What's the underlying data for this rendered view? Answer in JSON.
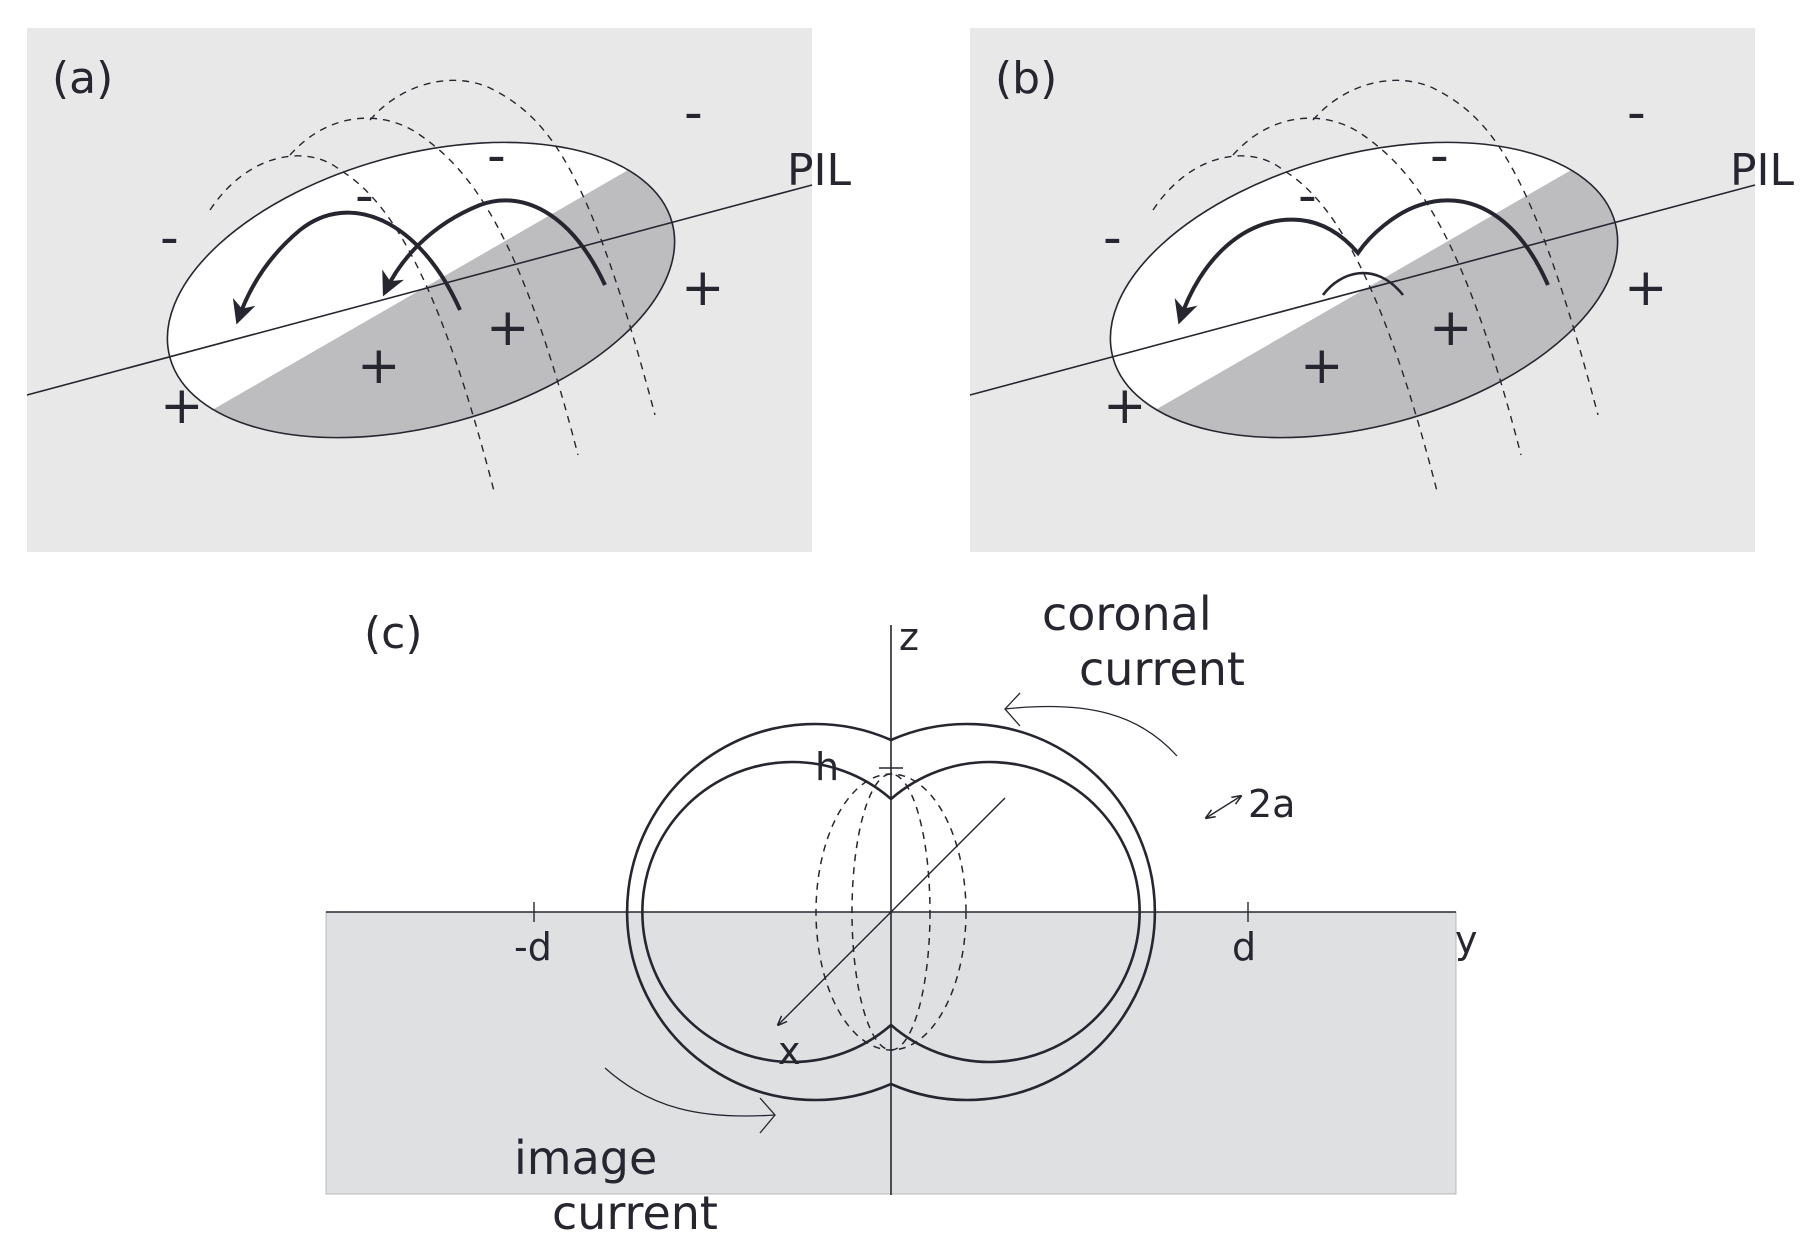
{
  "colors": {
    "panel_background": "#e8e8e8",
    "shaded_region": "#bdbdbf",
    "photosphere": "#dfe0e2",
    "stroke": "#262630"
  },
  "panels": {
    "a": {
      "label": "(a)",
      "pil_label": "PIL",
      "signs": [
        "-",
        "-",
        "-",
        "-",
        "+",
        "+",
        "+",
        "+"
      ]
    },
    "b": {
      "label": "(b)",
      "pil_label": "PIL",
      "signs": [
        "-",
        "-",
        "-",
        "-",
        "+",
        "+",
        "+",
        "+"
      ]
    },
    "c": {
      "label": "(c)",
      "axes": {
        "z": "z",
        "y": "y",
        "x": "x"
      },
      "labels": {
        "h": "h",
        "two_a": "2a",
        "minus_d": "-d",
        "d": "d"
      },
      "coronal_current": [
        "coronal",
        "current"
      ],
      "image_current": [
        "image",
        "current"
      ]
    }
  }
}
